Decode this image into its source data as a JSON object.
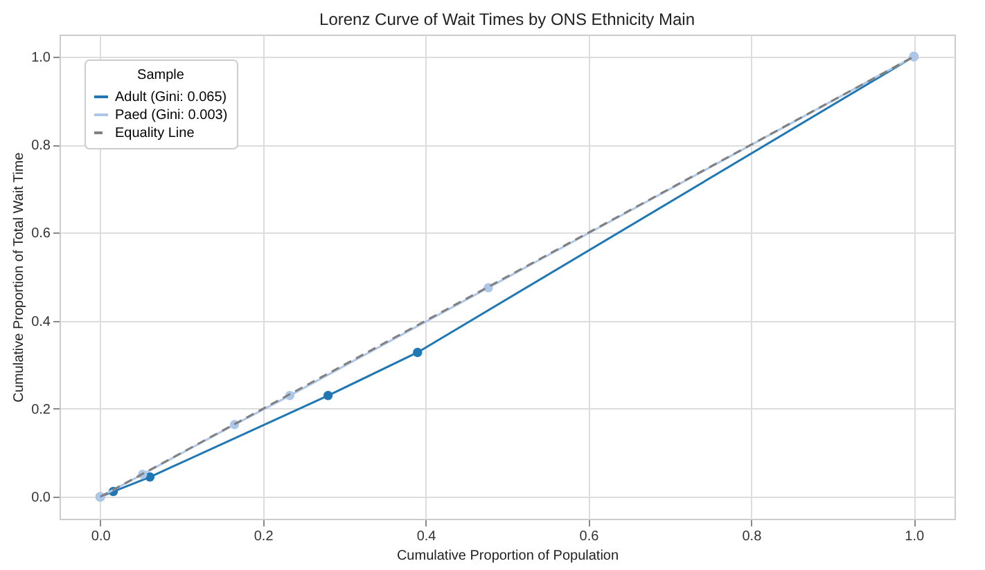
{
  "chart_data": {
    "type": "line",
    "title": "Lorenz Curve of Wait Times by ONS Ethnicity Main",
    "xlabel": "Cumulative Proportion of Population",
    "ylabel": "Cumulative Proportion of Total Wait Time",
    "legend_title": "Sample",
    "xlim": [
      -0.05,
      1.05
    ],
    "ylim": [
      -0.05,
      1.05
    ],
    "xticks": [
      {
        "value": 0,
        "label": "0.0"
      },
      0.2,
      0.4,
      0.6,
      0.8,
      {
        "value": 1,
        "label": "1.0"
      }
    ],
    "yticks": [
      {
        "value": 0,
        "label": "0.0"
      },
      0.2,
      0.4,
      0.6,
      0.8,
      {
        "value": 1,
        "label": "1.0"
      }
    ],
    "grid": true,
    "legend": "top left",
    "series": [
      {
        "name": "Adult (Gini: 0.065)",
        "color": "#1f77b4",
        "marker": "circle",
        "line_style": "solid",
        "x": [
          0,
          0.016,
          0.061,
          0.28,
          0.39,
          1
        ],
        "values": [
          0,
          0.012,
          0.045,
          0.23,
          0.328,
          1
        ]
      },
      {
        "name": "Paed (Gini: 0.003)",
        "color": "#aec7e8",
        "marker": "circle",
        "line_style": "solid",
        "x": [
          0,
          0.052,
          0.165,
          0.233,
          0.477,
          1
        ],
        "values": [
          0,
          0.051,
          0.164,
          0.23,
          0.475,
          1
        ]
      },
      {
        "name": "Equality Line",
        "color": "#808080",
        "marker": "none",
        "line_style": "dashed",
        "x": [
          0,
          1
        ],
        "values": [
          0,
          1
        ]
      }
    ]
  }
}
